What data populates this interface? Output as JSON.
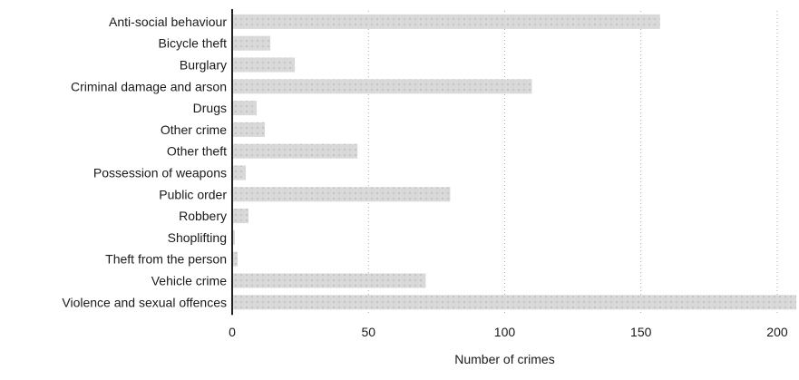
{
  "chart_data": {
    "type": "bar",
    "orientation": "horizontal",
    "title": "",
    "xlabel": "Number of crimes",
    "ylabel": "",
    "categories": [
      "Anti-social behaviour",
      "Bicycle theft",
      "Burglary",
      "Criminal damage and arson",
      "Drugs",
      "Other crime",
      "Other theft",
      "Possession of weapons",
      "Public order",
      "Robbery",
      "Shoplifting",
      "Theft from the person",
      "Vehicle crime",
      "Violence and sexual offences"
    ],
    "values": [
      157,
      14,
      23,
      110,
      9,
      12,
      46,
      5,
      80,
      6,
      1,
      2,
      71,
      207
    ],
    "xlim": [
      0,
      207
    ],
    "xticks": [
      0,
      50,
      100,
      150,
      200
    ],
    "grid": true,
    "legend": "none",
    "colors": {
      "bar": "#d9d9d9",
      "bar_texture": "#c4c4c4",
      "axis": "#222222",
      "grid": "#9a9a9a",
      "text": "#1a1a1a"
    }
  }
}
